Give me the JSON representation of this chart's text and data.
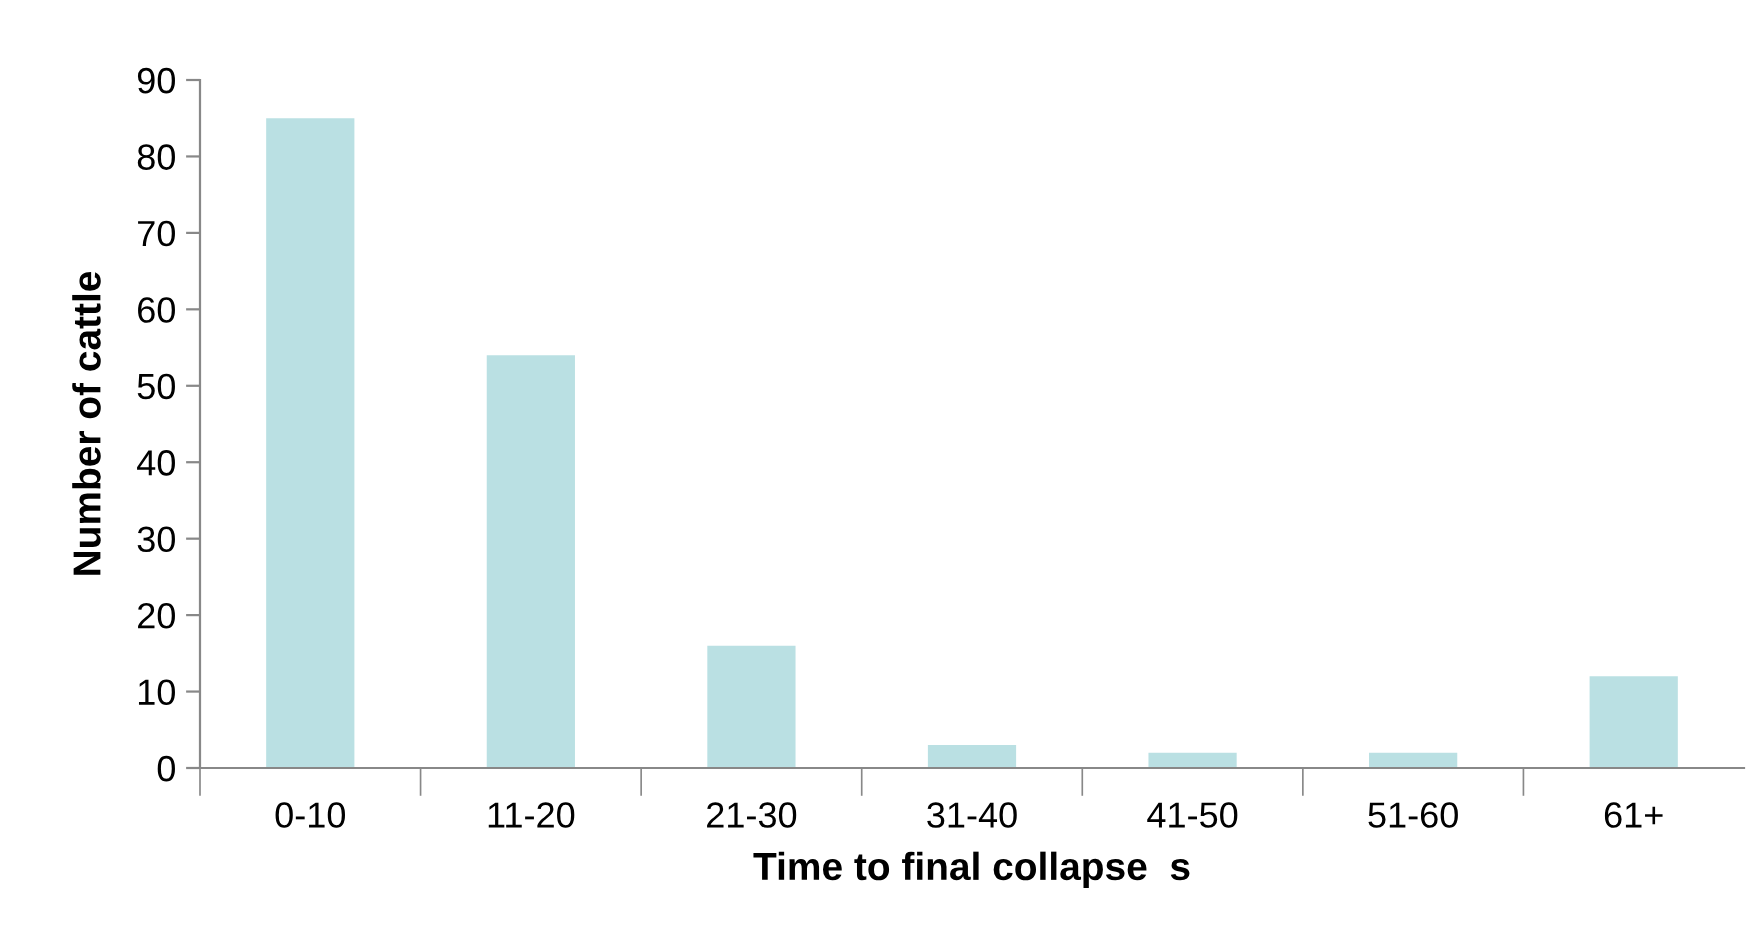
{
  "chart_data": {
    "type": "bar",
    "xlabel": "Time to final collapse  s",
    "ylabel": "Number of cattle",
    "categories": [
      "0-10",
      "11-20",
      "21-30",
      "31-40",
      "41-50",
      "51-60",
      "61+"
    ],
    "values": [
      85,
      54,
      16,
      3,
      2,
      2,
      12
    ],
    "color": "#bae0e3",
    "ylim": [
      0,
      90
    ],
    "yticks": [
      0,
      10,
      20,
      30,
      40,
      50,
      60,
      70,
      80,
      90
    ],
    "grid": false,
    "legend": false
  }
}
